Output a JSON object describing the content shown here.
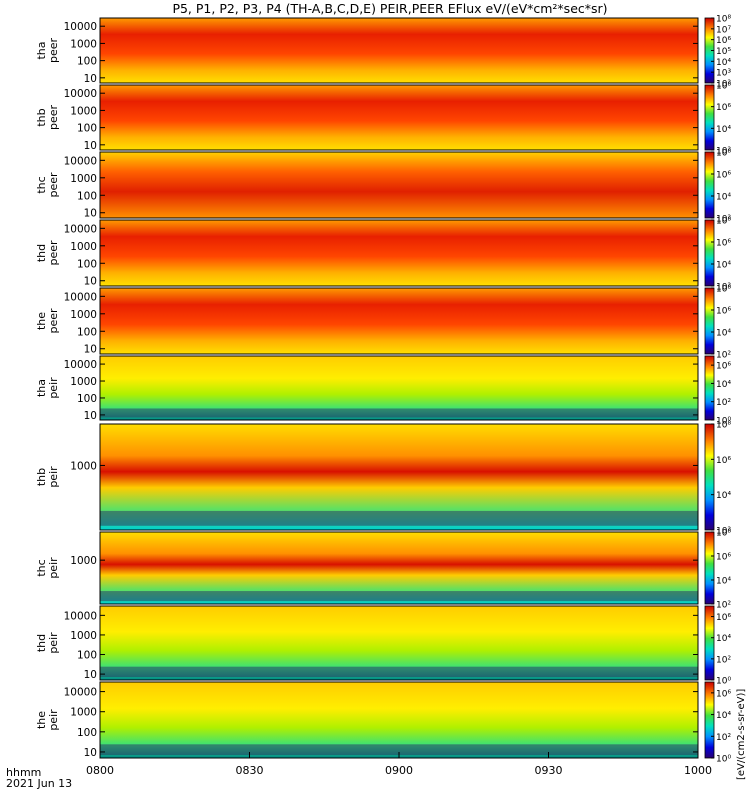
{
  "chart_data": {
    "type": "heatmap",
    "title": "P5, P1, P2, P3, P4 (TH-A,B,C,D,E) PEIR,PEER EFlux eV/(eV*cm²*sec*sr)",
    "x_label_line1": "hhmm",
    "x_label_line2": "2021 Jun 13",
    "x_ticks": [
      "0800",
      "0830",
      "0900",
      "0930",
      "1000"
    ],
    "x_range": [
      "0800",
      "1000"
    ],
    "colorbar_label": "[eV/(cm2-s-sr-eV)]",
    "panels": [
      {
        "name": "tha peer",
        "line1": "tha",
        "line2": "peer",
        "y_ticks": [
          "10000",
          "1000",
          "100",
          "10"
        ],
        "ylim": [
          5,
          30000
        ],
        "scale": "log",
        "colorbar_ticks": [
          "10⁸",
          "10⁷",
          "10⁶",
          "10⁵",
          "10⁴",
          "10³",
          "10²"
        ],
        "colorbar_range": [
          100,
          100000000
        ]
      },
      {
        "name": "thb peer",
        "line1": "thb",
        "line2": "peer",
        "y_ticks": [
          "10000",
          "1000",
          "100",
          "10"
        ],
        "ylim": [
          5,
          30000
        ],
        "scale": "log",
        "colorbar_ticks": [
          "10⁸",
          "10⁶",
          "10⁴",
          "10²"
        ],
        "colorbar_range": [
          100,
          100000000
        ]
      },
      {
        "name": "thc peer",
        "line1": "thc",
        "line2": "peer",
        "y_ticks": [
          "10000",
          "1000",
          "100",
          "10"
        ],
        "ylim": [
          5,
          30000
        ],
        "scale": "log",
        "colorbar_ticks": [
          "10⁸",
          "10⁶",
          "10⁴",
          "10²"
        ],
        "colorbar_range": [
          100,
          100000000
        ]
      },
      {
        "name": "thd peer",
        "line1": "thd",
        "line2": "peer",
        "y_ticks": [
          "10000",
          "1000",
          "100",
          "10"
        ],
        "ylim": [
          5,
          30000
        ],
        "scale": "log",
        "colorbar_ticks": [
          "10⁸",
          "10⁶",
          "10⁴",
          "10²"
        ],
        "colorbar_range": [
          100,
          100000000
        ]
      },
      {
        "name": "the peer",
        "line1": "the",
        "line2": "peer",
        "y_ticks": [
          "10000",
          "1000",
          "100",
          "10"
        ],
        "ylim": [
          5,
          30000
        ],
        "scale": "log",
        "colorbar_ticks": [
          "10⁸",
          "10⁶",
          "10⁴",
          "10²"
        ],
        "colorbar_range": [
          100,
          100000000
        ]
      },
      {
        "name": "tha peir",
        "line1": "tha",
        "line2": "peir",
        "y_ticks": [
          "10000",
          "1000",
          "100",
          "10"
        ],
        "ylim": [
          5,
          30000
        ],
        "scale": "log",
        "colorbar_ticks": [
          "10⁶",
          "10⁴",
          "10²",
          "10⁰"
        ],
        "colorbar_range": [
          1,
          10000000
        ]
      },
      {
        "name": "thb peir",
        "line1": "thb",
        "line2": "peir",
        "y_ticks": [
          "1000"
        ],
        "ylim": [
          5,
          30000
        ],
        "scale": "log",
        "colorbar_ticks": [
          "10⁸",
          "10⁶",
          "10⁴",
          "10²"
        ],
        "colorbar_range": [
          100,
          100000000
        ]
      },
      {
        "name": "thc peir",
        "line1": "thc",
        "line2": "peir",
        "y_ticks": [
          "1000"
        ],
        "ylim": [
          5,
          30000
        ],
        "scale": "log",
        "colorbar_ticks": [
          "10⁸",
          "10⁶",
          "10⁴",
          "10²"
        ],
        "colorbar_range": [
          100,
          100000000
        ]
      },
      {
        "name": "thd peir",
        "line1": "thd",
        "line2": "peir",
        "y_ticks": [
          "10000",
          "1000",
          "100",
          "10"
        ],
        "ylim": [
          5,
          30000
        ],
        "scale": "log",
        "colorbar_ticks": [
          "10⁶",
          "10⁴",
          "10²",
          "10⁰"
        ],
        "colorbar_range": [
          1,
          10000000
        ]
      },
      {
        "name": "the peir",
        "line1": "the",
        "line2": "peir",
        "y_ticks": [
          "10000",
          "1000",
          "100",
          "10"
        ],
        "ylim": [
          5,
          30000
        ],
        "scale": "log",
        "colorbar_ticks": [
          "10⁶",
          "10⁴",
          "10²",
          "10⁰"
        ],
        "colorbar_range": [
          1,
          10000000
        ]
      }
    ]
  }
}
